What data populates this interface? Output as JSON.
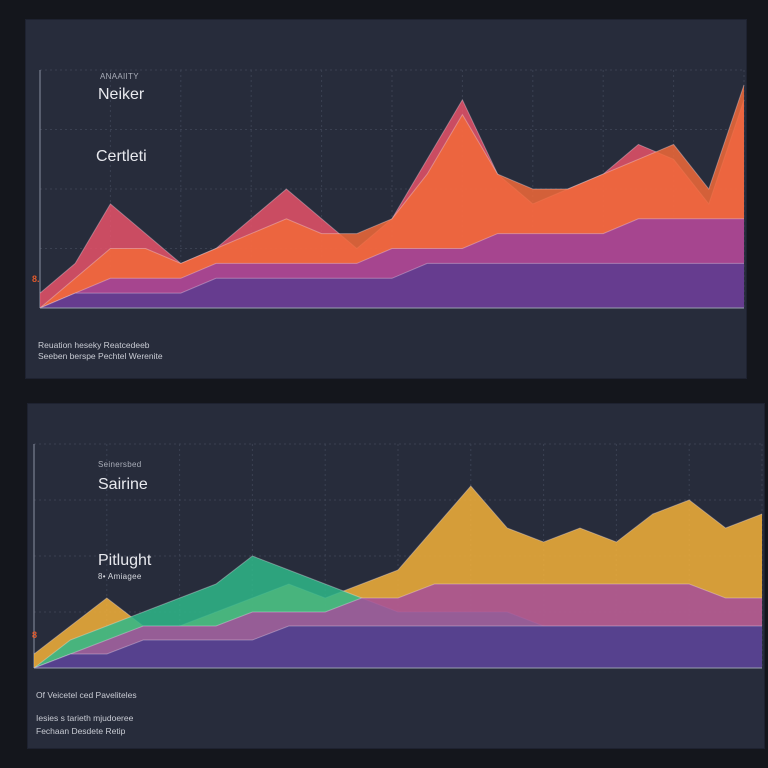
{
  "colors": {
    "background": "#14161c",
    "panel": "#272c3b",
    "grid": "#3b4152",
    "accent": "#e25a2c"
  },
  "top_panel": {
    "small_label": "ANAAIITY",
    "heading_1": "Neiker",
    "heading_2": "Certleti",
    "axis_marker": "8.",
    "footer_lines": [
      "Reuation heseky Reatcedeeb",
      "Seeben berspe Pechtel Werenite"
    ]
  },
  "bottom_panel": {
    "small_label": "Seinersbed",
    "heading_1": "Sairine",
    "heading_2": "Pitlught",
    "sub_label": "8• Amiagee",
    "axis_marker": "8",
    "footer_lines": [
      "Of Veicetel ced Paveliteles",
      "Iesies s tarieth mjudoeree",
      "Fechaan Desdete Retip"
    ]
  },
  "chart_data": [
    {
      "type": "area",
      "title": "",
      "xlabel": "",
      "ylabel": "",
      "x": [
        0,
        1,
        2,
        3,
        4,
        5,
        6,
        7,
        8,
        9,
        10,
        11,
        12,
        13,
        14,
        15,
        16,
        17,
        18,
        19,
        20
      ],
      "series": [
        {
          "color": "#e8526a",
          "values": [
            1,
            3,
            7,
            5,
            3,
            4,
            6,
            8,
            6,
            4,
            6,
            10,
            14,
            9,
            7,
            8,
            9,
            11,
            10,
            7,
            14
          ]
        },
        {
          "color": "#f26a3a",
          "values": [
            0,
            2,
            4,
            4,
            3,
            4,
            5,
            6,
            5,
            5,
            6,
            9,
            13,
            9,
            8,
            8,
            9,
            10,
            11,
            8,
            15
          ]
        },
        {
          "color": "#9a3f9e",
          "values": [
            0,
            1,
            2,
            2,
            2,
            3,
            3,
            3,
            3,
            3,
            4,
            4,
            4,
            5,
            5,
            5,
            5,
            6,
            6,
            6,
            6
          ]
        },
        {
          "color": "#5b3b8f",
          "values": [
            0,
            1,
            1,
            1,
            1,
            2,
            2,
            2,
            2,
            2,
            2,
            3,
            3,
            3,
            3,
            3,
            3,
            3,
            3,
            3,
            3
          ]
        }
      ],
      "ylim": [
        0,
        16
      ],
      "grid": true
    },
    {
      "type": "area",
      "title": "",
      "xlabel": "",
      "ylabel": "",
      "x": [
        0,
        1,
        2,
        3,
        4,
        5,
        6,
        7,
        8,
        9,
        10,
        11,
        12,
        13,
        14,
        15,
        16,
        17,
        18,
        19,
        20
      ],
      "series": [
        {
          "color": "#f4b23a",
          "values": [
            1,
            3,
            5,
            3,
            3,
            4,
            5,
            6,
            5,
            6,
            7,
            10,
            13,
            10,
            9,
            10,
            9,
            11,
            12,
            10,
            11
          ]
        },
        {
          "color": "#2fb88a",
          "values": [
            0,
            2,
            3,
            4,
            5,
            6,
            8,
            7,
            6,
            5,
            4,
            4,
            4,
            4,
            3,
            3,
            3,
            3,
            3,
            3,
            3
          ]
        },
        {
          "color": "#a54d9a",
          "values": [
            0,
            1,
            2,
            3,
            3,
            3,
            4,
            4,
            4,
            5,
            5,
            6,
            6,
            6,
            6,
            6,
            6,
            6,
            6,
            5,
            5
          ]
        },
        {
          "color": "#4b3c8d",
          "values": [
            0,
            1,
            1,
            2,
            2,
            2,
            2,
            3,
            3,
            3,
            3,
            3,
            3,
            3,
            3,
            3,
            3,
            3,
            3,
            3,
            3
          ]
        }
      ],
      "ylim": [
        0,
        16
      ],
      "grid": true
    }
  ]
}
